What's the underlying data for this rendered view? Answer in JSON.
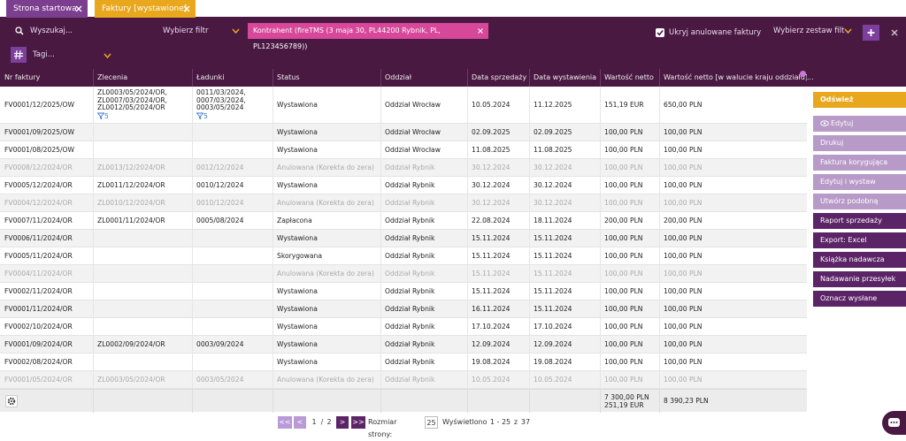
{
  "tabs": [
    {
      "label": "Strona startowa",
      "active": false
    },
    {
      "label": "Faktury [wystawione]",
      "active": true
    }
  ],
  "toolbar": {
    "search_placeholder": "Wyszukaj...",
    "filter_select": "Wybierz filtr",
    "filter_chip": "Kontrahent (fireTMS (3 maja 30, PL44200 Rybnik, PL, PL123456789))",
    "hide_cancelled": {
      "label": "Ukryj anulowane faktury",
      "checked": true
    },
    "filter_set": "Wybierz zestaw filt",
    "tags_placeholder": "Tagi..."
  },
  "table": {
    "columns": [
      "Nr faktury",
      "Zlecenia",
      "Ładunki",
      "Status",
      "Oddział",
      "Data sprzedaży",
      "Data wystawienia",
      "Wartość netto",
      "Wartość netto [w walucie kraju oddziału]"
    ],
    "columns_more": "...",
    "rows": [
      {
        "cancelled": false,
        "cells": [
          "FV0001/12/2025/OW",
          {
            "lines": [
              "ZL0003/05/2024/OR,",
              "ZL0007/03/2024/OR,",
              "ZL0012/05/2024/OR"
            ],
            "badge": "5"
          },
          {
            "lines": [
              "0011/03/2024,",
              "0007/03/2024,",
              "0003/05/2024"
            ],
            "badge": "5"
          },
          "Wystawiona",
          "Oddział Wrocław",
          "10.05.2024",
          "11.12.2025",
          "151,19 EUR",
          "650,00 PLN"
        ]
      },
      {
        "cancelled": false,
        "cells": [
          "FV0001/09/2025/OW",
          "",
          "",
          "Wystawiona",
          "Oddział Wrocław",
          "02.09.2025",
          "02.09.2025",
          "100,00 PLN",
          "100,00 PLN"
        ]
      },
      {
        "cancelled": false,
        "cells": [
          "FV0001/08/2025/OW",
          "",
          "",
          "Wystawiona",
          "Oddział Wrocław",
          "11.08.2025",
          "11.08.2025",
          "100,00 PLN",
          "100,00 PLN"
        ]
      },
      {
        "cancelled": true,
        "cells": [
          "FV0008/12/2024/OR",
          "ZL0013/12/2024/OR",
          "0012/12/2024",
          "Anulowana (Korekta do zera)",
          "Oddział Rybnik",
          "30.12.2024",
          "30.12.2024",
          "100,00 PLN",
          "100,00 PLN"
        ]
      },
      {
        "cancelled": false,
        "cells": [
          "FV0005/12/2024/OR",
          "ZL0011/12/2024/OR",
          "0010/12/2024",
          "Wystawiona",
          "Oddział Rybnik",
          "30.12.2024",
          "30.12.2024",
          "100,00 PLN",
          "100,00 PLN"
        ]
      },
      {
        "cancelled": true,
        "cells": [
          "FV0004/12/2024/OR",
          "ZL0010/12/2024/OR",
          "0010/12/2024",
          "Anulowana (Korekta do zera)",
          "Oddział Rybnik",
          "30.12.2024",
          "30.12.2024",
          "100,00 PLN",
          "100,00 PLN"
        ]
      },
      {
        "cancelled": false,
        "cells": [
          "FV0007/11/2024/OR",
          "ZL0001/11/2024/OR",
          "0005/08/2024",
          "Zapłacona",
          "Oddział Rybnik",
          "22.08.2024",
          "18.11.2024",
          "200,00 PLN",
          "200,00 PLN"
        ]
      },
      {
        "cancelled": false,
        "cells": [
          "FV0006/11/2024/OR",
          "",
          "",
          "Wystawiona",
          "Oddział Rybnik",
          "15.11.2024",
          "15.11.2024",
          "100,00 PLN",
          "100,00 PLN"
        ]
      },
      {
        "cancelled": false,
        "cells": [
          "FV0005/11/2024/OR",
          "",
          "",
          "Skorygowana",
          "Oddział Rybnik",
          "15.11.2024",
          "15.11.2024",
          "100,00 PLN",
          "100,00 PLN"
        ]
      },
      {
        "cancelled": true,
        "cells": [
          "FV0004/11/2024/OR",
          "",
          "",
          "Anulowana (Korekta do zera)",
          "Oddział Rybnik",
          "15.11.2024",
          "15.11.2024",
          "100,00 PLN",
          "100,00 PLN"
        ]
      },
      {
        "cancelled": false,
        "cells": [
          "FV0002/11/2024/OR",
          "",
          "",
          "Wystawiona",
          "Oddział Rybnik",
          "15.11.2024",
          "15.11.2024",
          "100,00 PLN",
          "100,00 PLN"
        ]
      },
      {
        "cancelled": false,
        "cells": [
          "FV0001/11/2024/OR",
          "",
          "",
          "Wystawiona",
          "Oddział Rybnik",
          "16.11.2024",
          "15.11.2024",
          "100,00 PLN",
          "100,00 PLN"
        ]
      },
      {
        "cancelled": false,
        "cells": [
          "FV0002/10/2024/OR",
          "",
          "",
          "Wystawiona",
          "Oddział Rybnik",
          "17.10.2024",
          "17.10.2024",
          "100,00 PLN",
          "100,00 PLN"
        ]
      },
      {
        "cancelled": false,
        "cells": [
          "FV0001/09/2024/OR",
          "ZL0002/09/2024/OR",
          "0003/09/2024",
          "Wystawiona",
          "Oddział Rybnik",
          "12.09.2024",
          "12.09.2024",
          "100,00 PLN",
          "100,00 PLN"
        ]
      },
      {
        "cancelled": false,
        "cells": [
          "FV0002/08/2024/OR",
          "",
          "",
          "Wystawiona",
          "Oddział Rybnik",
          "19.08.2024",
          "19.08.2024",
          "100,00 PLN",
          "100,00 PLN"
        ]
      },
      {
        "cancelled": true,
        "cells": [
          "FV0001/05/2024/OR",
          "ZL0003/05/2024/OR",
          "0003/05/2024",
          "Anulowana (Korekta do zera)",
          "Oddział Rybnik",
          "10.05.2024",
          "10.05.2024",
          "100,00 PLN",
          "100,00 PLN"
        ]
      }
    ],
    "totals": {
      "net": [
        "7 300,00 PLN",
        "251,19 EUR"
      ],
      "net_local": [
        "8 390,23 PLN"
      ]
    }
  },
  "actions": [
    {
      "label": "Odśwież",
      "style": "accent"
    },
    {
      "label": "Edytuj",
      "style": "light"
    },
    {
      "label": "Drukuj",
      "style": "light"
    },
    {
      "label": "Faktura korygująca",
      "style": "light"
    },
    {
      "label": "Edytuj i wystaw ponow...",
      "style": "light"
    },
    {
      "label": "Utwórz podobną",
      "style": "light"
    },
    {
      "label": "Raport sprzedaży",
      "style": "dark"
    },
    {
      "label": "Export: Excel",
      "style": "dark"
    },
    {
      "label": "Książka nadawcza",
      "style": "dark"
    },
    {
      "label": "Nadawanie przesyłek",
      "style": "dark"
    },
    {
      "label": "Oznacz wysłane",
      "style": "dark"
    }
  ],
  "pagination": {
    "first": "<<",
    "prev": "<",
    "page": "1",
    "separator": "/",
    "pages": "2",
    "next": ">",
    "last": ">>",
    "page_size_label": "Rozmiar strony:",
    "page_size": "25",
    "shown_label": "Wyświetlono",
    "range": "1 - 25",
    "of": "z",
    "total": "37"
  }
}
